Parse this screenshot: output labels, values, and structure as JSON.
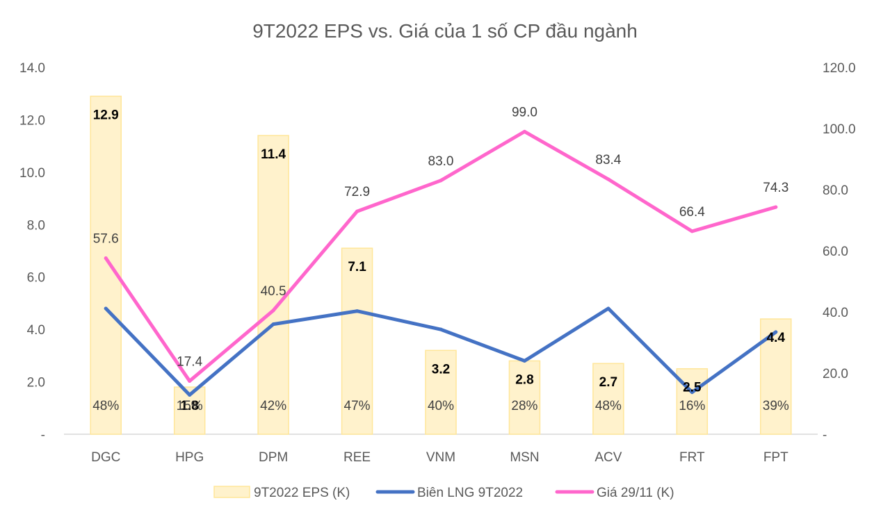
{
  "chart_data": {
    "type": "bar+line",
    "title": "9T2022 EPS vs. Giá của 1 số CP đầu ngành",
    "categories": [
      "DGC",
      "HPG",
      "DPM",
      "REE",
      "VNM",
      "MSN",
      "ACV",
      "FRT",
      "FPT"
    ],
    "series": [
      {
        "name": "9T2022 EPS (K)",
        "type": "bar",
        "axis": "left",
        "values": [
          12.9,
          1.8,
          11.4,
          7.1,
          3.2,
          2.8,
          2.7,
          2.5,
          4.4
        ],
        "labels": [
          "12.9",
          "1.8",
          "11.4",
          "7.1",
          "3.2",
          "2.8",
          "2.7",
          "2.5",
          "4.4"
        ],
        "color": "#FFF2CC",
        "border_color": "#FFE699"
      },
      {
        "name": "Biên LNG 9T2022",
        "type": "line",
        "axis": "left",
        "values": [
          0.48,
          0.15,
          0.42,
          0.47,
          0.4,
          0.28,
          0.48,
          0.16,
          0.39
        ],
        "labels": [
          "48%",
          "15%",
          "42%",
          "47%",
          "40%",
          "28%",
          "48%",
          "16%",
          "39%"
        ],
        "color": "#4472C4"
      },
      {
        "name": "Giá 29/11 (K)",
        "type": "line",
        "axis": "right",
        "values": [
          57.6,
          17.4,
          40.5,
          72.9,
          83.0,
          99.0,
          83.4,
          66.4,
          74.3
        ],
        "labels": [
          "57.6",
          "17.4",
          "40.5",
          "72.9",
          "83.0",
          "99.0",
          "83.4",
          "66.4",
          "74.3"
        ],
        "color": "#FF66CC"
      }
    ],
    "y_left": {
      "min": 0,
      "max": 14,
      "step": 2,
      "tick_labels": [
        "-",
        "2.0",
        "4.0",
        "6.0",
        "8.0",
        "10.0",
        "12.0",
        "14.0"
      ]
    },
    "y_right": {
      "min": 0,
      "max": 120,
      "step": 20,
      "tick_labels": [
        "-",
        "20.0",
        "40.0",
        "60.0",
        "80.0",
        "100.0",
        "120.0"
      ]
    },
    "grid": false,
    "legend_position": "bottom"
  }
}
